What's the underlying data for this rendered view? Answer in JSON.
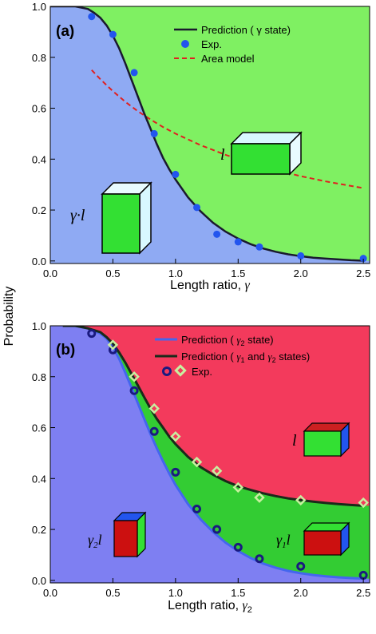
{
  "figure": {
    "ylabel": "Probability"
  },
  "chart_data": [
    {
      "type": "line",
      "panel_label": "(a)",
      "xlabel": "Length ratio, γ",
      "ylabel": "Probability",
      "xlim": [
        0.0,
        2.55
      ],
      "ylim": [
        -0.01,
        1.0
      ],
      "xticks": [
        "0.0",
        "0.5",
        "1.0",
        "1.5",
        "2.0",
        "2.5"
      ],
      "yticks": [
        "0.0",
        "0.2",
        "0.4",
        "0.6",
        "0.8",
        "1.0"
      ],
      "grid": false,
      "legend_position": "top-right",
      "region_colors": {
        "lower": "#8faaf3",
        "upper": "#7ff062"
      },
      "series": [
        {
          "name": "Prediction ( γ state)",
          "kind": "line",
          "color": "#1a1a2e",
          "x": [
            0.0,
            0.1,
            0.2,
            0.3,
            0.35,
            0.4,
            0.45,
            0.5,
            0.55,
            0.6,
            0.65,
            0.7,
            0.75,
            0.8,
            0.85,
            0.9,
            0.95,
            1.0,
            1.1,
            1.2,
            1.3,
            1.4,
            1.5,
            1.6,
            1.7,
            1.8,
            1.9,
            2.0,
            2.1,
            2.2,
            2.3,
            2.4,
            2.5
          ],
          "y": [
            1.0,
            1.0,
            1.0,
            0.99,
            0.975,
            0.955,
            0.925,
            0.885,
            0.835,
            0.775,
            0.71,
            0.645,
            0.58,
            0.52,
            0.46,
            0.405,
            0.36,
            0.32,
            0.25,
            0.195,
            0.15,
            0.115,
            0.088,
            0.066,
            0.049,
            0.036,
            0.026,
            0.019,
            0.013,
            0.009,
            0.006,
            0.003,
            0.001
          ]
        },
        {
          "name": "Exp.",
          "kind": "scatter",
          "color": "#2255ee",
          "x": [
            0.33,
            0.5,
            0.67,
            0.83,
            1.0,
            1.17,
            1.33,
            1.5,
            1.67,
            2.0,
            2.5
          ],
          "y": [
            0.96,
            0.89,
            0.74,
            0.5,
            0.34,
            0.21,
            0.105,
            0.075,
            0.055,
            0.02,
            0.01
          ]
        },
        {
          "name": "Area model",
          "kind": "dashed",
          "color": "#e02020",
          "x": [
            0.33,
            0.4,
            0.5,
            0.6,
            0.7,
            0.8,
            0.9,
            1.0,
            1.2,
            1.4,
            1.6,
            1.8,
            2.0,
            2.2,
            2.5
          ],
          "y": [
            0.75,
            0.714,
            0.667,
            0.625,
            0.588,
            0.556,
            0.526,
            0.5,
            0.455,
            0.417,
            0.385,
            0.357,
            0.333,
            0.3125,
            0.286
          ]
        }
      ],
      "annotations": {
        "block_top": "l",
        "block_bottom": "γ·l"
      }
    },
    {
      "type": "line",
      "panel_label": "(b)",
      "xlabel": "Length ratio, γ2",
      "ylabel": "Probability",
      "xlim": [
        0.0,
        2.55
      ],
      "ylim": [
        -0.01,
        1.0
      ],
      "xticks": [
        "0.0",
        "0.5",
        "1.0",
        "1.5",
        "2.0",
        "2.5"
      ],
      "yticks": [
        "0.0",
        "0.2",
        "0.4",
        "0.6",
        "0.8",
        "1.0"
      ],
      "grid": false,
      "legend_position": "top-right",
      "region_colors": {
        "lower": "#7e7ff2",
        "middle": "#33cc33",
        "upper": "#f33a5c"
      },
      "series": [
        {
          "name": "Prediction ( γ2 state)",
          "kind": "line",
          "color": "#4466ee",
          "x": [
            0.1,
            0.2,
            0.3,
            0.4,
            0.45,
            0.5,
            0.55,
            0.6,
            0.65,
            0.7,
            0.75,
            0.8,
            0.85,
            0.9,
            0.95,
            1.0,
            1.1,
            1.2,
            1.3,
            1.4,
            1.5,
            1.6,
            1.7,
            1.8,
            1.9,
            2.0,
            2.1,
            2.2,
            2.3,
            2.4,
            2.5
          ],
          "y": [
            1.0,
            1.0,
            0.99,
            0.97,
            0.95,
            0.915,
            0.87,
            0.815,
            0.755,
            0.695,
            0.635,
            0.575,
            0.52,
            0.468,
            0.42,
            0.375,
            0.3,
            0.24,
            0.19,
            0.148,
            0.115,
            0.088,
            0.066,
            0.05,
            0.037,
            0.028,
            0.021,
            0.016,
            0.012,
            0.009,
            0.007
          ]
        },
        {
          "name": "Prediction ( γ1 and γ2 states)",
          "kind": "line",
          "color": "#1a2a1a",
          "x": [
            0.1,
            0.2,
            0.3,
            0.4,
            0.45,
            0.5,
            0.55,
            0.6,
            0.65,
            0.7,
            0.75,
            0.8,
            0.85,
            0.9,
            0.95,
            1.0,
            1.1,
            1.2,
            1.3,
            1.4,
            1.5,
            1.6,
            1.7,
            1.8,
            1.9,
            2.0,
            2.1,
            2.2,
            2.3,
            2.4,
            2.5
          ],
          "y": [
            1.0,
            1.0,
            0.99,
            0.975,
            0.955,
            0.93,
            0.895,
            0.855,
            0.81,
            0.765,
            0.72,
            0.675,
            0.635,
            0.6,
            0.565,
            0.535,
            0.485,
            0.445,
            0.415,
            0.39,
            0.37,
            0.355,
            0.342,
            0.331,
            0.322,
            0.315,
            0.309,
            0.304,
            0.3,
            0.296,
            0.293
          ]
        },
        {
          "name": "Exp. (γ2)",
          "kind": "ring",
          "color": "#1a1a80",
          "x": [
            0.33,
            0.5,
            0.67,
            0.83,
            1.0,
            1.17,
            1.33,
            1.5,
            1.67,
            2.0,
            2.5
          ],
          "y": [
            0.97,
            0.905,
            0.745,
            0.585,
            0.425,
            0.28,
            0.2,
            0.13,
            0.085,
            0.055,
            0.02
          ]
        },
        {
          "name": "Exp. (γ1, γ2)",
          "kind": "diamond",
          "color": "#c8f0a0",
          "x": [
            0.5,
            0.67,
            0.83,
            1.0,
            1.17,
            1.33,
            1.5,
            1.67,
            2.0,
            2.5
          ],
          "y": [
            0.925,
            0.8,
            0.675,
            0.565,
            0.465,
            0.43,
            0.365,
            0.325,
            0.315,
            0.305
          ]
        }
      ],
      "legend": {
        "line1": "Prediction ( γ2 state)",
        "line2": "Prediction ( γ1 and γ2 states)",
        "exp": "Exp."
      },
      "annotations": {
        "block_top": "l",
        "block_left": "γ2 l",
        "block_right": "γ1 l"
      }
    }
  ]
}
